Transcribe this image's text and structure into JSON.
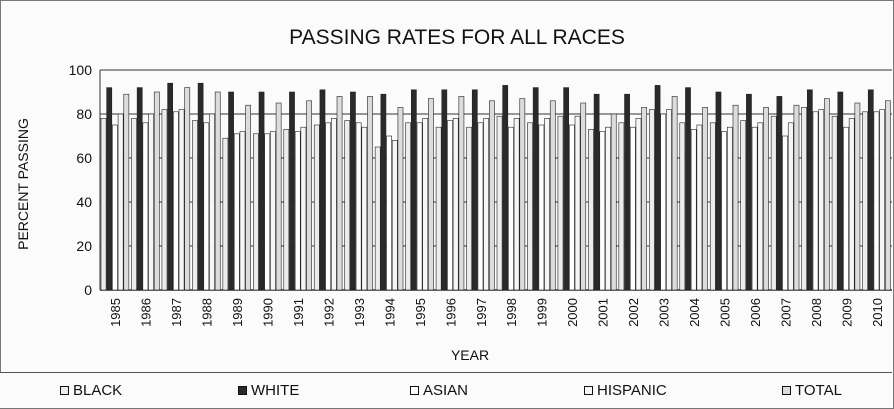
{
  "chart_data": {
    "type": "bar",
    "title": "PASSING RATES FOR ALL RACES",
    "xlabel": "YEAR",
    "ylabel": "PERCENT PASSING",
    "ylim": [
      0,
      100
    ],
    "yticks": [
      0,
      20,
      40,
      60,
      80,
      100
    ],
    "grid": true,
    "legend_position": "bottom",
    "categories": [
      "1985",
      "1986",
      "1987",
      "1988",
      "1989",
      "1990",
      "1991",
      "1992",
      "1993",
      "1994",
      "1995",
      "1996",
      "1997",
      "1998",
      "1999",
      "2000",
      "2001",
      "2002",
      "2003",
      "2004",
      "2005",
      "2006",
      "2007",
      "2008",
      "2009",
      "2010"
    ],
    "series": [
      {
        "name": "BLACK",
        "color": "#ececec",
        "values": [
          78,
          78,
          82,
          77,
          69,
          71,
          73,
          75,
          77,
          65,
          76,
          74,
          74,
          79,
          76,
          79,
          73,
          76,
          82,
          76,
          76,
          77,
          79,
          83,
          79,
          81
        ]
      },
      {
        "name": "WHITE",
        "color": "#2a2a2a",
        "values": [
          92,
          92,
          94,
          94,
          90,
          90,
          90,
          91,
          90,
          89,
          91,
          91,
          91,
          93,
          92,
          92,
          89,
          89,
          93,
          92,
          90,
          89,
          88,
          91,
          90,
          91
        ]
      },
      {
        "name": "ASIAN",
        "color": "#ffffff",
        "values": [
          75,
          76,
          81,
          76,
          71,
          71,
          72,
          76,
          76,
          70,
          76,
          77,
          76,
          74,
          75,
          75,
          72,
          74,
          80,
          73,
          72,
          74,
          70,
          81,
          74,
          81
        ]
      },
      {
        "name": "HISPANIC",
        "color": "#f6f6f6",
        "values": [
          80,
          80,
          82,
          80,
          72,
          72,
          74,
          78,
          74,
          68,
          78,
          78,
          78,
          78,
          78,
          79,
          74,
          78,
          82,
          75,
          74,
          76,
          76,
          82,
          78,
          82
        ]
      },
      {
        "name": "TOTAL",
        "color": "#dcdcdc",
        "values": [
          89,
          90,
          92,
          90,
          84,
          85,
          86,
          88,
          88,
          83,
          87,
          88,
          86,
          87,
          86,
          85,
          80,
          83,
          88,
          83,
          84,
          83,
          84,
          87,
          85,
          86
        ]
      }
    ]
  }
}
